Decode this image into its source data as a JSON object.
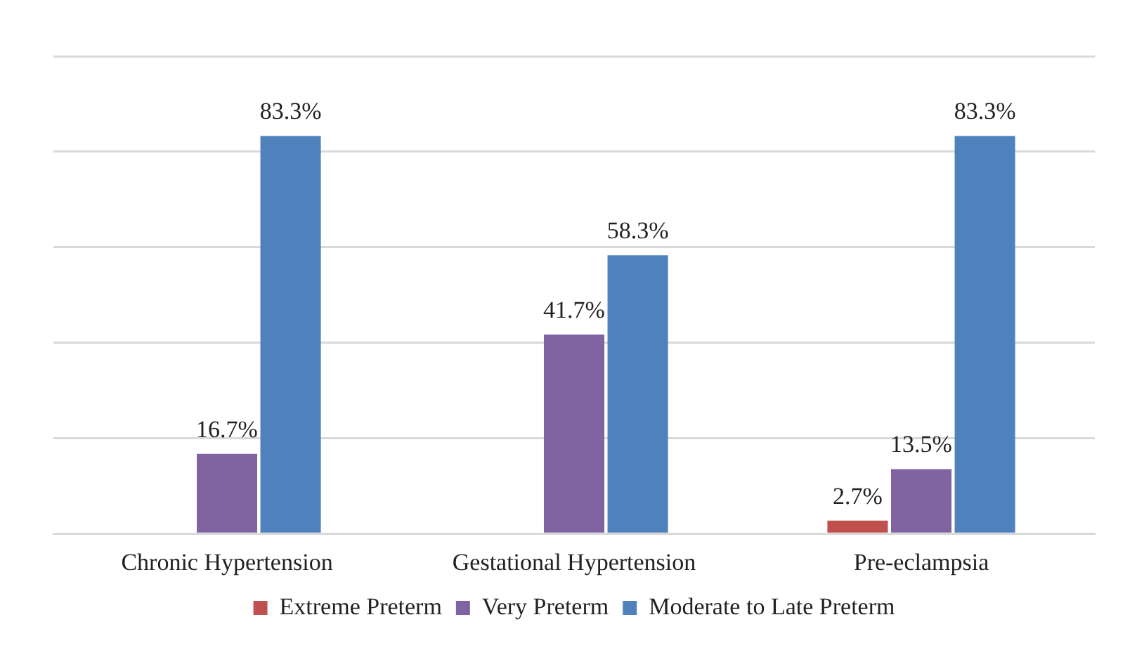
{
  "chart_data": {
    "type": "bar",
    "categories": [
      "Chronic Hypertension",
      "Gestational Hypertension",
      "Pre-eclampsia"
    ],
    "series": [
      {
        "name": "Extreme Preterm",
        "color": "#c0504d",
        "values": [
          null,
          null,
          2.7
        ],
        "value_labels": [
          null,
          null,
          "2.7%"
        ]
      },
      {
        "name": "Very Preterm",
        "color": "#8064a2",
        "values": [
          16.7,
          41.7,
          13.5
        ],
        "value_labels": [
          "16.7%",
          "41.7%",
          "13.5%"
        ]
      },
      {
        "name": "Moderate to Late Preterm",
        "color": "#4f81bd",
        "values": [
          83.3,
          58.3,
          83.3
        ],
        "value_labels": [
          "83.3%",
          "58.3%",
          "83.3%"
        ]
      }
    ],
    "tick_labels": "x",
    "grid": "y",
    "legend": "bottom"
  }
}
